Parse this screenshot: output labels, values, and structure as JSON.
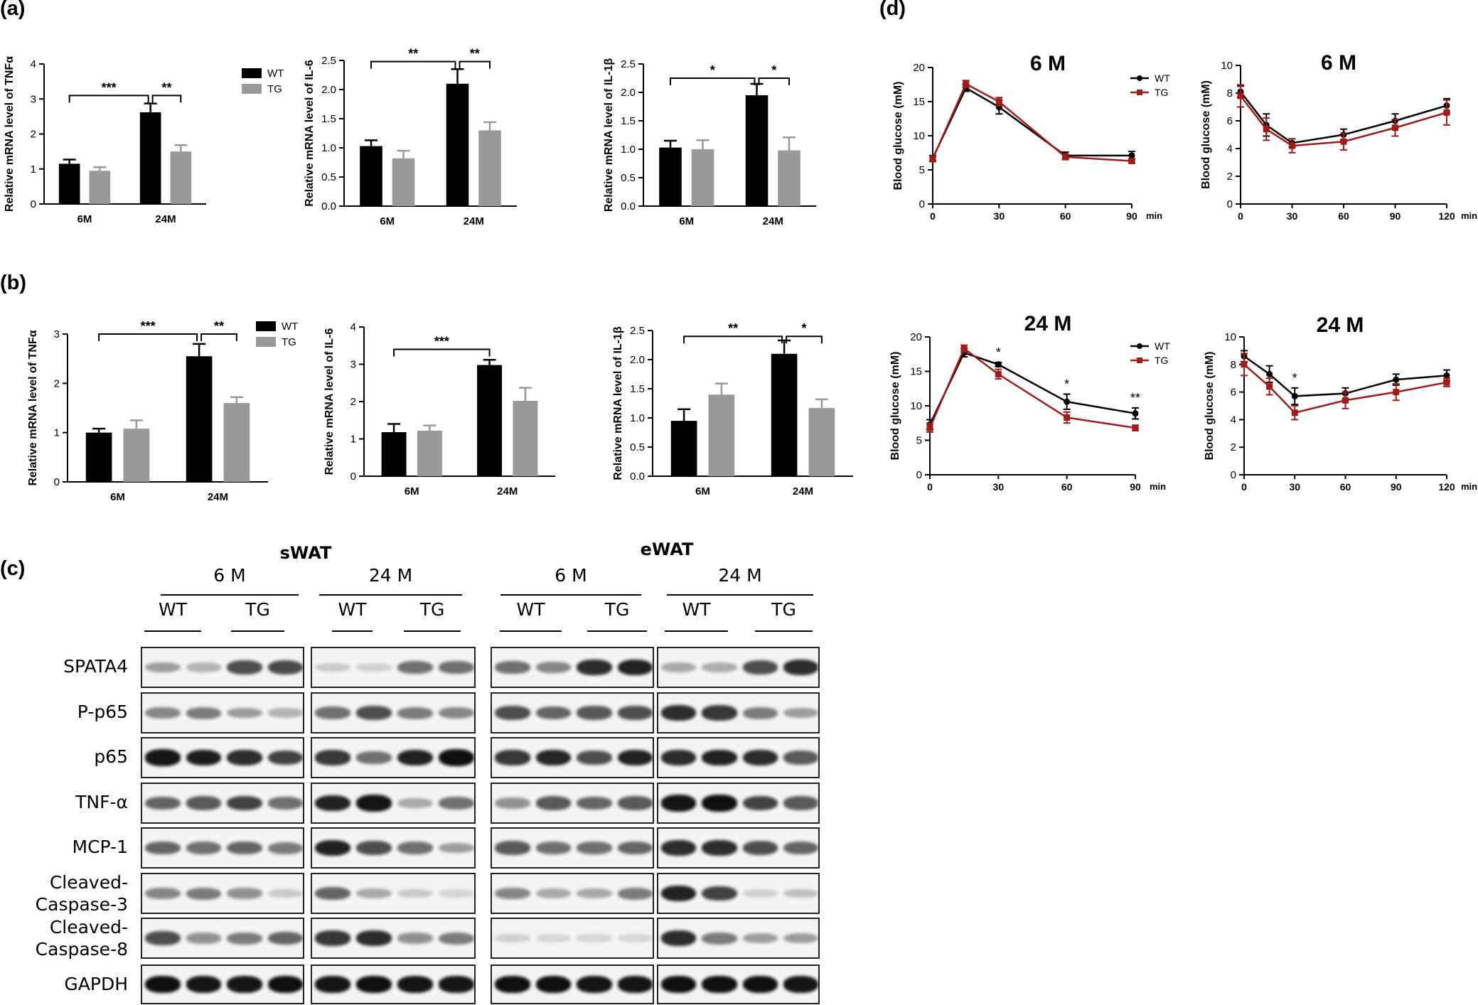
{
  "panels": {
    "a": "(a)",
    "b": "(b)",
    "c": "(c)",
    "d": "(d)"
  },
  "colors": {
    "wt_bar": "#000000",
    "tg_bar": "#999999",
    "wt_line": "#000000",
    "tg_line": "#a11b1b"
  },
  "chart_data": [
    {
      "id": "a1",
      "panel": "a",
      "type": "bar",
      "ylabel": "Relative mRNA level of TNFα",
      "ylim": [
        0,
        4
      ],
      "yticks": [
        0,
        1,
        2,
        3,
        4
      ],
      "categories": [
        "6M",
        "24M"
      ],
      "series": [
        {
          "name": "WT",
          "values": [
            1.15,
            2.62
          ],
          "errors": [
            0.12,
            0.25
          ]
        },
        {
          "name": "TG",
          "values": [
            0.95,
            1.5
          ],
          "errors": [
            0.1,
            0.18
          ]
        }
      ],
      "legend": [
        "WT",
        "TG"
      ],
      "significance": [
        {
          "from": [
            0,
            0
          ],
          "to": [
            1,
            0
          ],
          "label": "***",
          "y": 3.1
        },
        {
          "from": [
            1,
            0
          ],
          "to": [
            1,
            1
          ],
          "label": "**",
          "y": 3.1
        }
      ]
    },
    {
      "id": "a2",
      "panel": "a",
      "type": "bar",
      "ylabel": "Relative mRNA level of IL-6",
      "ylim": [
        0,
        2.5
      ],
      "yticks": [
        0.0,
        0.5,
        1.0,
        1.5,
        2.0,
        2.5
      ],
      "categories": [
        "6M",
        "24M"
      ],
      "series": [
        {
          "name": "WT",
          "values": [
            1.03,
            2.1
          ],
          "errors": [
            0.1,
            0.25
          ]
        },
        {
          "name": "TG",
          "values": [
            0.82,
            1.3
          ],
          "errors": [
            0.13,
            0.14
          ]
        }
      ],
      "significance": [
        {
          "from": [
            0,
            0
          ],
          "to": [
            1,
            0
          ],
          "label": "**",
          "y": 2.48
        },
        {
          "from": [
            1,
            0
          ],
          "to": [
            1,
            1
          ],
          "label": "**",
          "y": 2.48
        }
      ]
    },
    {
      "id": "a3",
      "panel": "a",
      "type": "bar",
      "ylabel": "Relative mRNA level of IL-1β",
      "ylim": [
        0,
        2.5
      ],
      "yticks": [
        0.0,
        0.5,
        1.0,
        1.5,
        2.0,
        2.5
      ],
      "categories": [
        "6M",
        "24M"
      ],
      "series": [
        {
          "name": "WT",
          "values": [
            1.03,
            1.95
          ],
          "errors": [
            0.12,
            0.2
          ]
        },
        {
          "name": "TG",
          "values": [
            1.0,
            0.98
          ],
          "errors": [
            0.16,
            0.23
          ]
        }
      ],
      "significance": [
        {
          "from": [
            0,
            0
          ],
          "to": [
            1,
            0
          ],
          "label": "*",
          "y": 2.25
        },
        {
          "from": [
            1,
            0
          ],
          "to": [
            1,
            1
          ],
          "label": "*",
          "y": 2.25
        }
      ]
    },
    {
      "id": "b1",
      "panel": "b",
      "type": "bar",
      "ylabel": "Relative mRNA level of TNFα",
      "ylim": [
        0,
        3
      ],
      "yticks": [
        0,
        1,
        2,
        3
      ],
      "categories": [
        "6M",
        "24M"
      ],
      "series": [
        {
          "name": "WT",
          "values": [
            1.0,
            2.55
          ],
          "errors": [
            0.08,
            0.25
          ]
        },
        {
          "name": "TG",
          "values": [
            1.08,
            1.6
          ],
          "errors": [
            0.17,
            0.12
          ]
        }
      ],
      "legend": [
        "WT",
        "TG"
      ],
      "significance": [
        {
          "from": [
            0,
            0
          ],
          "to": [
            1,
            0
          ],
          "label": "***",
          "y": 3.0
        },
        {
          "from": [
            1,
            0
          ],
          "to": [
            1,
            1
          ],
          "label": "**",
          "y": 3.0
        }
      ]
    },
    {
      "id": "b2",
      "panel": "b",
      "type": "bar",
      "ylabel": "Relative mRNA level of IL-6",
      "ylim": [
        0,
        4
      ],
      "yticks": [
        0,
        1,
        2,
        3,
        4
      ],
      "categories": [
        "6M",
        "24M"
      ],
      "series": [
        {
          "name": "WT",
          "values": [
            1.18,
            2.98
          ],
          "errors": [
            0.22,
            0.14
          ]
        },
        {
          "name": "TG",
          "values": [
            1.22,
            2.02
          ],
          "errors": [
            0.14,
            0.35
          ]
        }
      ],
      "significance": [
        {
          "from": [
            0,
            0
          ],
          "to": [
            1,
            0
          ],
          "label": "***",
          "y": 3.4
        }
      ]
    },
    {
      "id": "b3",
      "panel": "b",
      "type": "bar",
      "ylabel": "Relative mRNA level of IL-1β",
      "ylim": [
        0,
        2.5
      ],
      "yticks": [
        0.0,
        0.5,
        1.0,
        1.5,
        2.0,
        2.5
      ],
      "categories": [
        "6M",
        "24M"
      ],
      "series": [
        {
          "name": "WT",
          "values": [
            0.95,
            2.1
          ],
          "errors": [
            0.2,
            0.23
          ]
        },
        {
          "name": "TG",
          "values": [
            1.4,
            1.17
          ],
          "errors": [
            0.19,
            0.15
          ]
        }
      ],
      "significance": [
        {
          "from": [
            0,
            0
          ],
          "to": [
            1,
            0
          ],
          "label": "**",
          "y": 2.4
        },
        {
          "from": [
            1,
            0
          ],
          "to": [
            1,
            1
          ],
          "label": "*",
          "y": 2.4
        }
      ]
    },
    {
      "id": "d1",
      "panel": "d",
      "type": "line",
      "title": "6 M",
      "ylabel": "Blood glucose (mM)",
      "xunit": "min",
      "ylim": [
        0,
        20
      ],
      "yticks": [
        0,
        5,
        10,
        15,
        20
      ],
      "xlim": [
        0,
        90
      ],
      "xticks": [
        0,
        30,
        60,
        90
      ],
      "x": [
        0,
        15,
        30,
        60,
        90
      ],
      "series": [
        {
          "name": "WT",
          "values": [
            6.7,
            17.0,
            14.2,
            7.1,
            7.1
          ],
          "errors": [
            0.4,
            0.5,
            1.0,
            0.5,
            0.6
          ]
        },
        {
          "name": "TG",
          "values": [
            6.6,
            17.6,
            15.0,
            6.9,
            6.3
          ],
          "errors": [
            0.4,
            0.5,
            0.6,
            0.4,
            0.3
          ]
        }
      ],
      "legend": [
        "WT",
        "TG"
      ],
      "annotations": []
    },
    {
      "id": "d2",
      "panel": "d",
      "type": "line",
      "title": "6 M",
      "ylabel": "Blood glucose (mM)",
      "xunit": "min",
      "ylim": [
        0,
        10
      ],
      "yticks": [
        0,
        2,
        4,
        6,
        8,
        10
      ],
      "xlim": [
        0,
        120
      ],
      "xticks": [
        0,
        30,
        60,
        90,
        120
      ],
      "x": [
        0,
        15,
        30,
        60,
        90,
        120
      ],
      "series": [
        {
          "name": "WT",
          "values": [
            8.1,
            5.7,
            4.4,
            5.0,
            6.0,
            7.1
          ],
          "errors": [
            0.4,
            0.8,
            0.3,
            0.4,
            0.5,
            0.5
          ]
        },
        {
          "name": "TG",
          "values": [
            7.8,
            5.4,
            4.2,
            4.5,
            5.5,
            6.6
          ],
          "errors": [
            0.8,
            0.8,
            0.5,
            0.6,
            0.6,
            0.9
          ]
        }
      ],
      "annotations": []
    },
    {
      "id": "d3",
      "panel": "d",
      "type": "line",
      "title": "24 M",
      "ylabel": "Blood glucose (mM)",
      "xunit": "min",
      "ylim": [
        0,
        20
      ],
      "yticks": [
        0,
        5,
        10,
        15,
        20
      ],
      "xlim": [
        0,
        90
      ],
      "xticks": [
        0,
        30,
        60,
        90
      ],
      "x": [
        0,
        15,
        30,
        60,
        90
      ],
      "series": [
        {
          "name": "WT",
          "values": [
            7.3,
            17.7,
            16.0,
            10.6,
            8.9
          ],
          "errors": [
            0.7,
            0.6,
            0.3,
            1.1,
            0.8
          ]
        },
        {
          "name": "TG",
          "values": [
            6.8,
            18.3,
            14.6,
            8.3,
            6.8
          ],
          "errors": [
            0.6,
            0.5,
            0.7,
            0.8,
            0.4
          ]
        }
      ],
      "legend": [
        "WT",
        "TG"
      ],
      "annotations": [
        {
          "x": 30,
          "label": "*"
        },
        {
          "x": 60,
          "label": "*"
        },
        {
          "x": 90,
          "label": "**"
        }
      ]
    },
    {
      "id": "d4",
      "panel": "d",
      "type": "line",
      "title": "24 M",
      "ylabel": "Blood glucose (mM)",
      "xunit": "min",
      "ylim": [
        0,
        10
      ],
      "yticks": [
        0,
        2,
        4,
        6,
        8,
        10
      ],
      "xlim": [
        0,
        120
      ],
      "xticks": [
        0,
        30,
        60,
        90,
        120
      ],
      "x": [
        0,
        15,
        30,
        60,
        90,
        120
      ],
      "series": [
        {
          "name": "WT",
          "values": [
            8.6,
            7.3,
            5.7,
            5.9,
            6.9,
            7.2
          ],
          "errors": [
            0.4,
            0.6,
            0.6,
            0.4,
            0.4,
            0.4
          ]
        },
        {
          "name": "TG",
          "values": [
            8.0,
            6.4,
            4.5,
            5.4,
            6.0,
            6.7
          ],
          "errors": [
            0.8,
            0.6,
            0.5,
            0.6,
            0.6,
            0.3
          ]
        }
      ],
      "annotations": [
        {
          "x": 30,
          "label": "*"
        }
      ]
    }
  ],
  "western": {
    "tissues": [
      "sWAT",
      "eWAT"
    ],
    "ages": [
      "6 M",
      "24 M",
      "6 M",
      "24 M"
    ],
    "groups": [
      "WT",
      "TG",
      "WT",
      "TG",
      "WT",
      "TG",
      "WT",
      "TG"
    ],
    "rows": [
      "SPATA4",
      "P-p65",
      "p65",
      "TNF-α",
      "MCP-1",
      "Cleaved-\nCaspase-3",
      "Cleaved-\nCaspase-8",
      "GAPDH"
    ],
    "row_labels": [
      {
        "line1": "SPATA4",
        "line2": ""
      },
      {
        "line1": "P-p65",
        "line2": ""
      },
      {
        "line1": "p65",
        "line2": ""
      },
      {
        "line1": "TNF-α",
        "line2": ""
      },
      {
        "line1": "MCP-1",
        "line2": ""
      },
      {
        "line1": "Cleaved-",
        "line2": "Caspase-3"
      },
      {
        "line1": "Cleaved-",
        "line2": "Caspase-8"
      },
      {
        "line1": "GAPDH",
        "line2": ""
      }
    ],
    "band_intensity": [
      [
        0.35,
        0.25,
        0.7,
        0.72,
        0.15,
        0.12,
        0.55,
        0.55,
        0.55,
        0.45,
        0.85,
        0.9,
        0.3,
        0.28,
        0.7,
        0.85
      ],
      [
        0.45,
        0.5,
        0.35,
        0.25,
        0.55,
        0.7,
        0.5,
        0.45,
        0.7,
        0.6,
        0.65,
        0.7,
        0.85,
        0.8,
        0.5,
        0.35
      ],
      [
        0.95,
        0.92,
        0.85,
        0.75,
        0.8,
        0.55,
        0.9,
        0.98,
        0.8,
        0.88,
        0.7,
        0.9,
        0.85,
        0.9,
        0.85,
        0.65
      ],
      [
        0.6,
        0.65,
        0.75,
        0.55,
        0.9,
        0.95,
        0.3,
        0.55,
        0.4,
        0.65,
        0.6,
        0.65,
        0.95,
        0.98,
        0.75,
        0.65
      ],
      [
        0.6,
        0.55,
        0.6,
        0.5,
        0.9,
        0.7,
        0.55,
        0.35,
        0.65,
        0.55,
        0.55,
        0.6,
        0.85,
        0.85,
        0.7,
        0.6
      ],
      [
        0.45,
        0.5,
        0.4,
        0.15,
        0.6,
        0.3,
        0.15,
        0.1,
        0.45,
        0.3,
        0.3,
        0.5,
        0.9,
        0.75,
        0.12,
        0.2
      ],
      [
        0.7,
        0.4,
        0.5,
        0.6,
        0.8,
        0.85,
        0.4,
        0.5,
        0.12,
        0.1,
        0.1,
        0.1,
        0.85,
        0.5,
        0.35,
        0.35
      ],
      [
        0.98,
        0.95,
        0.95,
        0.98,
        0.95,
        0.98,
        0.95,
        0.95,
        0.98,
        0.98,
        0.95,
        0.95,
        0.98,
        0.98,
        0.98,
        0.95
      ]
    ]
  }
}
